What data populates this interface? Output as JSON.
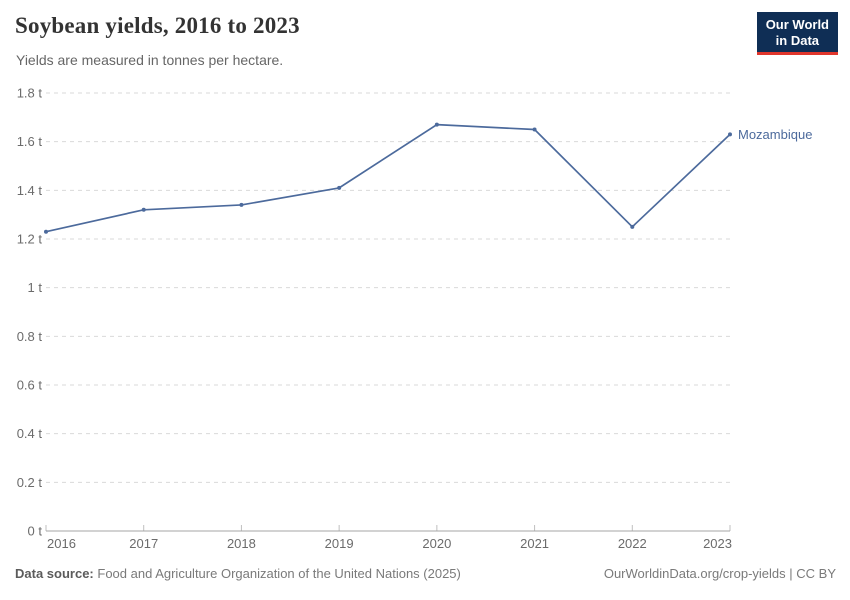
{
  "header": {
    "title": "Soybean yields, 2016 to 2023",
    "subtitle": "Yields are measured in tonnes per hectare."
  },
  "logo": {
    "line1": "Our World",
    "line2": "in Data",
    "bg_color": "#0f2e55",
    "accent_color": "#e0362c"
  },
  "chart_data": {
    "type": "line",
    "title": "Soybean yields, 2016 to 2023",
    "ylabel": "tonnes per hectare",
    "xlabel": "",
    "x": [
      2016,
      2017,
      2018,
      2019,
      2020,
      2021,
      2022,
      2023
    ],
    "xlim": [
      2016,
      2023
    ],
    "ylim": [
      0,
      1.8
    ],
    "grid": true,
    "legend_position": "end-of-line-label",
    "series": [
      {
        "name": "Mozambique",
        "color": "#4c6a9c",
        "values": [
          1.23,
          1.32,
          1.34,
          1.41,
          1.67,
          1.65,
          1.25,
          1.63
        ]
      }
    ],
    "yticks": [
      {
        "v": 0,
        "label": "0 t"
      },
      {
        "v": 0.2,
        "label": "0.2 t"
      },
      {
        "v": 0.4,
        "label": "0.4 t"
      },
      {
        "v": 0.6,
        "label": "0.6 t"
      },
      {
        "v": 0.8,
        "label": "0.8 t"
      },
      {
        "v": 1,
        "label": "1 t"
      },
      {
        "v": 1.2,
        "label": "1.2 t"
      },
      {
        "v": 1.4,
        "label": "1.4 t"
      },
      {
        "v": 1.6,
        "label": "1.6 t"
      },
      {
        "v": 1.8,
        "label": "1.8 t"
      }
    ],
    "grid_color": "#d9d9d9",
    "axis_color": "#a4a4a4",
    "tick_text_color": "#6b6b6b"
  },
  "footer": {
    "source_label": "Data source:",
    "source_text": "Food and Agriculture Organization of the United Nations (2025)",
    "link_text": "OurWorldinData.org/crop-yields | CC BY"
  }
}
